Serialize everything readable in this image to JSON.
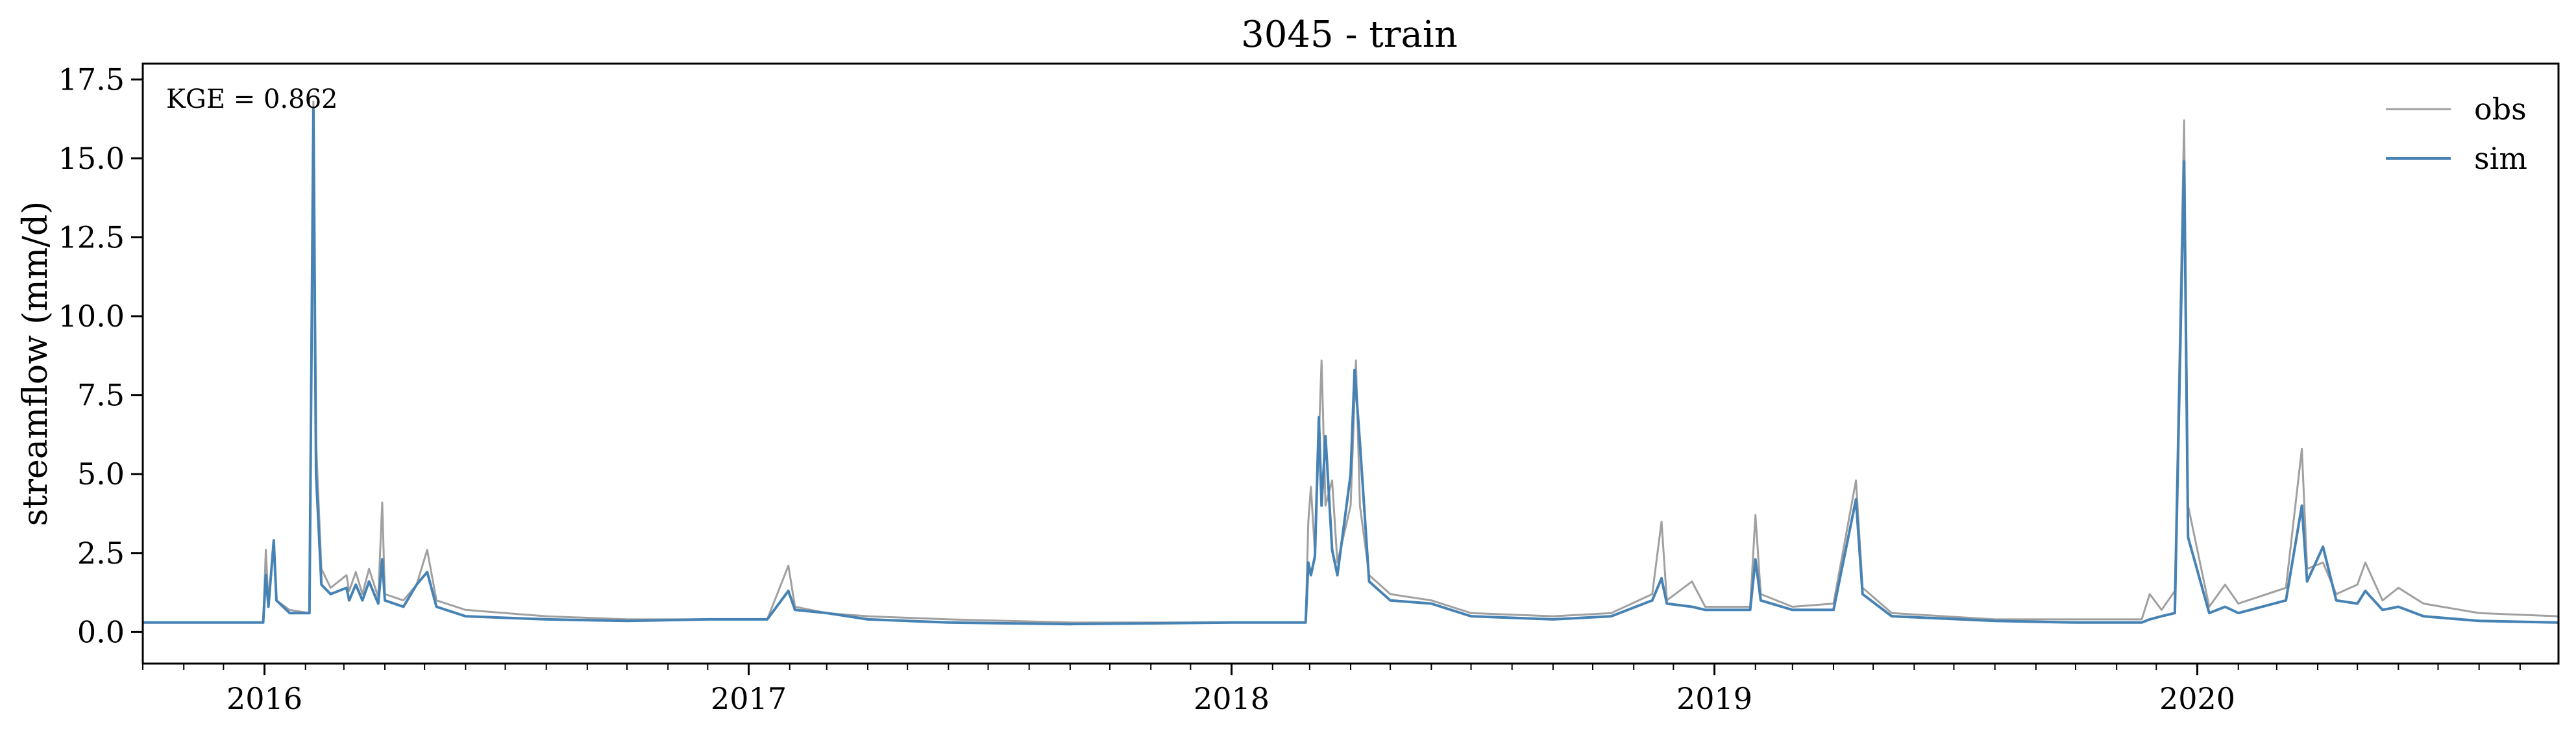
{
  "chart_data": {
    "type": "line",
    "title": "3045 - train",
    "xlabel": "",
    "ylabel": "streamflow (mm/d)",
    "annotation": "KGE = 0.862",
    "xlim": [
      "2015-10-01",
      "2020-09-30"
    ],
    "ylim": [
      -1.0,
      18.0
    ],
    "x_ticks": [
      "2016-01-01",
      "2017-01-01",
      "2018-01-01",
      "2019-01-01",
      "2020-01-01"
    ],
    "x_tick_labels": [
      "2016",
      "2017",
      "2018",
      "2019",
      "2020"
    ],
    "y_ticks": [
      0.0,
      2.5,
      5.0,
      7.5,
      10.0,
      12.5,
      15.0,
      17.5
    ],
    "y_tick_labels": [
      "0.0",
      "2.5",
      "5.0",
      "7.5",
      "10.0",
      "12.5",
      "15.0",
      "17.5"
    ],
    "grid": false,
    "legend_position": "top-right",
    "series": [
      {
        "name": "obs",
        "color": "#a0a0a0",
        "points": [
          [
            "2015-10-01",
            0.3
          ],
          [
            "2015-12-31",
            0.3
          ],
          [
            "2016-01-02",
            2.6
          ],
          [
            "2016-01-04",
            0.9
          ],
          [
            "2016-01-08",
            2.8
          ],
          [
            "2016-01-10",
            1.0
          ],
          [
            "2016-01-20",
            0.7
          ],
          [
            "2016-02-04",
            0.6
          ],
          [
            "2016-02-07",
            16.8
          ],
          [
            "2016-02-09",
            6.0
          ],
          [
            "2016-02-13",
            2.0
          ],
          [
            "2016-02-20",
            1.4
          ],
          [
            "2016-03-03",
            1.8
          ],
          [
            "2016-03-05",
            1.3
          ],
          [
            "2016-03-10",
            1.9
          ],
          [
            "2016-03-15",
            1.2
          ],
          [
            "2016-03-20",
            2.0
          ],
          [
            "2016-03-27",
            1.1
          ],
          [
            "2016-03-30",
            4.1
          ],
          [
            "2016-04-01",
            1.2
          ],
          [
            "2016-04-15",
            1.0
          ],
          [
            "2016-04-25",
            1.5
          ],
          [
            "2016-05-03",
            2.6
          ],
          [
            "2016-05-10",
            1.0
          ],
          [
            "2016-06-01",
            0.7
          ],
          [
            "2016-07-01",
            0.6
          ],
          [
            "2016-08-01",
            0.5
          ],
          [
            "2016-10-01",
            0.4
          ],
          [
            "2016-12-01",
            0.4
          ],
          [
            "2017-01-15",
            0.4
          ],
          [
            "2017-01-31",
            2.1
          ],
          [
            "2017-02-05",
            0.8
          ],
          [
            "2017-03-01",
            0.6
          ],
          [
            "2017-04-01",
            0.5
          ],
          [
            "2017-06-01",
            0.4
          ],
          [
            "2017-09-01",
            0.3
          ],
          [
            "2018-01-01",
            0.3
          ],
          [
            "2018-02-26",
            0.3
          ],
          [
            "2018-02-28",
            3.5
          ],
          [
            "2018-03-02",
            4.6
          ],
          [
            "2018-03-05",
            2.5
          ],
          [
            "2018-03-10",
            8.6
          ],
          [
            "2018-03-13",
            4.0
          ],
          [
            "2018-03-18",
            4.8
          ],
          [
            "2018-03-22",
            2.2
          ],
          [
            "2018-04-01",
            4.0
          ],
          [
            "2018-04-05",
            8.6
          ],
          [
            "2018-04-08",
            4.0
          ],
          [
            "2018-04-15",
            1.8
          ],
          [
            "2018-05-01",
            1.2
          ],
          [
            "2018-06-01",
            1.0
          ],
          [
            "2018-07-01",
            0.6
          ],
          [
            "2018-09-01",
            0.5
          ],
          [
            "2018-10-15",
            0.6
          ],
          [
            "2018-11-15",
            1.2
          ],
          [
            "2018-11-22",
            3.5
          ],
          [
            "2018-11-26",
            1.0
          ],
          [
            "2018-12-15",
            1.6
          ],
          [
            "2018-12-25",
            0.8
          ],
          [
            "2019-01-28",
            0.8
          ],
          [
            "2019-02-01",
            3.7
          ],
          [
            "2019-02-05",
            1.2
          ],
          [
            "2019-03-01",
            0.8
          ],
          [
            "2019-04-01",
            0.9
          ],
          [
            "2019-04-18",
            4.8
          ],
          [
            "2019-04-23",
            1.4
          ],
          [
            "2019-05-15",
            0.6
          ],
          [
            "2019-08-01",
            0.4
          ],
          [
            "2019-10-01",
            0.4
          ],
          [
            "2019-11-20",
            0.4
          ],
          [
            "2019-11-26",
            1.2
          ],
          [
            "2019-12-05",
            0.7
          ],
          [
            "2019-12-15",
            1.3
          ],
          [
            "2019-12-22",
            16.2
          ],
          [
            "2019-12-25",
            4.0
          ],
          [
            "2020-01-10",
            0.8
          ],
          [
            "2020-01-22",
            1.5
          ],
          [
            "2020-02-01",
            0.9
          ],
          [
            "2020-03-08",
            1.4
          ],
          [
            "2020-03-20",
            5.8
          ],
          [
            "2020-03-24",
            2.0
          ],
          [
            "2020-04-05",
            2.2
          ],
          [
            "2020-04-15",
            1.2
          ],
          [
            "2020-05-01",
            1.5
          ],
          [
            "2020-05-07",
            2.2
          ],
          [
            "2020-05-20",
            1.0
          ],
          [
            "2020-06-01",
            1.4
          ],
          [
            "2020-06-20",
            0.9
          ],
          [
            "2020-08-01",
            0.6
          ],
          [
            "2020-09-30",
            0.5
          ]
        ]
      },
      {
        "name": "sim",
        "color": "#4682b4",
        "points": [
          [
            "2015-10-01",
            0.3
          ],
          [
            "2015-12-31",
            0.3
          ],
          [
            "2016-01-02",
            1.8
          ],
          [
            "2016-01-04",
            0.8
          ],
          [
            "2016-01-08",
            2.9
          ],
          [
            "2016-01-10",
            1.0
          ],
          [
            "2016-01-20",
            0.6
          ],
          [
            "2016-02-04",
            0.6
          ],
          [
            "2016-02-07",
            16.6
          ],
          [
            "2016-02-09",
            5.0
          ],
          [
            "2016-02-13",
            1.5
          ],
          [
            "2016-02-20",
            1.2
          ],
          [
            "2016-03-03",
            1.4
          ],
          [
            "2016-03-05",
            1.0
          ],
          [
            "2016-03-10",
            1.5
          ],
          [
            "2016-03-15",
            1.0
          ],
          [
            "2016-03-20",
            1.6
          ],
          [
            "2016-03-27",
            0.9
          ],
          [
            "2016-03-30",
            2.3
          ],
          [
            "2016-04-01",
            1.0
          ],
          [
            "2016-04-15",
            0.8
          ],
          [
            "2016-04-25",
            1.5
          ],
          [
            "2016-05-03",
            1.9
          ],
          [
            "2016-05-10",
            0.8
          ],
          [
            "2016-06-01",
            0.5
          ],
          [
            "2016-07-01",
            0.45
          ],
          [
            "2016-08-01",
            0.4
          ],
          [
            "2016-10-01",
            0.35
          ],
          [
            "2016-12-01",
            0.4
          ],
          [
            "2017-01-15",
            0.4
          ],
          [
            "2017-01-31",
            1.3
          ],
          [
            "2017-02-05",
            0.7
          ],
          [
            "2017-03-01",
            0.6
          ],
          [
            "2017-04-01",
            0.4
          ],
          [
            "2017-06-01",
            0.3
          ],
          [
            "2017-09-01",
            0.25
          ],
          [
            "2018-01-01",
            0.3
          ],
          [
            "2018-02-26",
            0.3
          ],
          [
            "2018-02-28",
            2.2
          ],
          [
            "2018-03-02",
            1.8
          ],
          [
            "2018-03-05",
            2.4
          ],
          [
            "2018-03-08",
            6.8
          ],
          [
            "2018-03-10",
            4.0
          ],
          [
            "2018-03-13",
            6.2
          ],
          [
            "2018-03-18",
            2.6
          ],
          [
            "2018-03-22",
            1.8
          ],
          [
            "2018-04-01",
            5.0
          ],
          [
            "2018-04-04",
            8.3
          ],
          [
            "2018-04-08",
            6.0
          ],
          [
            "2018-04-15",
            1.6
          ],
          [
            "2018-05-01",
            1.0
          ],
          [
            "2018-06-01",
            0.9
          ],
          [
            "2018-07-01",
            0.5
          ],
          [
            "2018-09-01",
            0.4
          ],
          [
            "2018-10-15",
            0.5
          ],
          [
            "2018-11-15",
            1.0
          ],
          [
            "2018-11-22",
            1.7
          ],
          [
            "2018-11-26",
            0.9
          ],
          [
            "2018-12-15",
            0.8
          ],
          [
            "2018-12-25",
            0.7
          ],
          [
            "2019-01-28",
            0.7
          ],
          [
            "2019-02-01",
            2.3
          ],
          [
            "2019-02-05",
            1.0
          ],
          [
            "2019-03-01",
            0.7
          ],
          [
            "2019-04-01",
            0.7
          ],
          [
            "2019-04-18",
            4.2
          ],
          [
            "2019-04-23",
            1.2
          ],
          [
            "2019-05-15",
            0.5
          ],
          [
            "2019-08-01",
            0.35
          ],
          [
            "2019-10-01",
            0.3
          ],
          [
            "2019-11-20",
            0.3
          ],
          [
            "2019-11-26",
            0.4
          ],
          [
            "2019-12-05",
            0.5
          ],
          [
            "2019-12-15",
            0.6
          ],
          [
            "2019-12-22",
            14.9
          ],
          [
            "2019-12-25",
            3.0
          ],
          [
            "2020-01-10",
            0.6
          ],
          [
            "2020-01-22",
            0.8
          ],
          [
            "2020-02-01",
            0.6
          ],
          [
            "2020-03-08",
            1.0
          ],
          [
            "2020-03-20",
            4.0
          ],
          [
            "2020-03-24",
            1.6
          ],
          [
            "2020-04-05",
            2.7
          ],
          [
            "2020-04-15",
            1.0
          ],
          [
            "2020-05-01",
            0.9
          ],
          [
            "2020-05-07",
            1.3
          ],
          [
            "2020-05-20",
            0.7
          ],
          [
            "2020-06-01",
            0.8
          ],
          [
            "2020-06-20",
            0.5
          ],
          [
            "2020-08-01",
            0.35
          ],
          [
            "2020-09-30",
            0.3
          ]
        ]
      }
    ]
  }
}
